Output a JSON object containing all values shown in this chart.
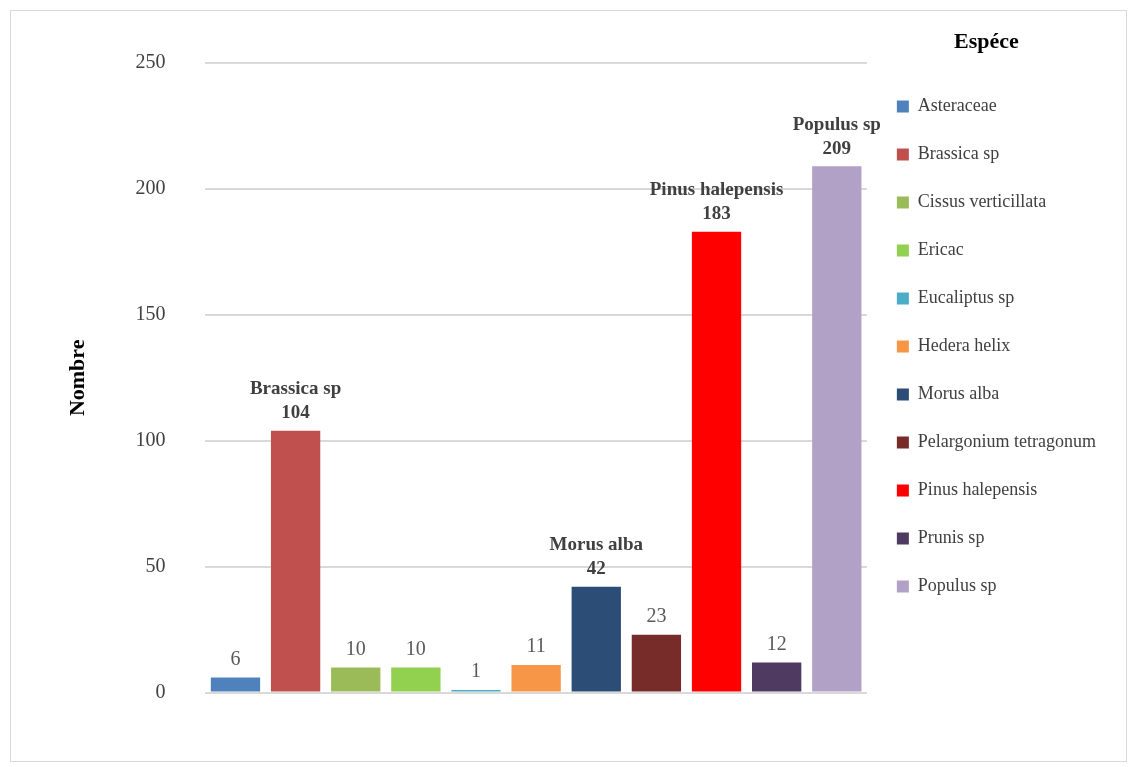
{
  "chart_data": {
    "type": "bar",
    "ylabel": "Nombre",
    "legend_title": "Espéce",
    "legend": "right",
    "grid": "y",
    "ylim": [
      0,
      250
    ],
    "yticks": [
      0,
      50,
      100,
      150,
      200,
      250
    ],
    "categories": [
      null,
      null,
      null,
      null,
      null,
      null,
      null,
      null,
      null,
      null,
      null
    ],
    "series": [
      {
        "name": "Asteraceae",
        "color": "#4f81bd",
        "values": [
          6,
          null,
          null,
          null,
          null,
          null,
          null,
          null,
          null,
          null,
          null
        ],
        "value_labels": [
          "6",
          null,
          null,
          null,
          null,
          null,
          null,
          null,
          null,
          null,
          null
        ]
      },
      {
        "name": "Brassica sp",
        "color": "#c0504d",
        "values": [
          null,
          104,
          null,
          null,
          null,
          null,
          null,
          null,
          null,
          null,
          null
        ],
        "value_labels": [
          null,
          "Brassica sp\n104",
          null,
          null,
          null,
          null,
          null,
          null,
          null,
          null,
          null
        ]
      },
      {
        "name": "Cissus verticillata",
        "color": "#9bbb59",
        "values": [
          null,
          null,
          10,
          null,
          null,
          null,
          null,
          null,
          null,
          null,
          null
        ],
        "value_labels": [
          null,
          null,
          "10",
          null,
          null,
          null,
          null,
          null,
          null,
          null,
          null
        ]
      },
      {
        "name": "Ericac",
        "color": "#92d050",
        "values": [
          null,
          null,
          null,
          10,
          null,
          null,
          null,
          null,
          null,
          null,
          null
        ],
        "value_labels": [
          null,
          null,
          null,
          "10",
          null,
          null,
          null,
          null,
          null,
          null,
          null
        ]
      },
      {
        "name": "Eucaliptus sp",
        "color": "#4bacc6",
        "values": [
          null,
          null,
          null,
          null,
          1,
          null,
          null,
          null,
          null,
          null,
          null
        ],
        "value_labels": [
          null,
          null,
          null,
          null,
          "1",
          null,
          null,
          null,
          null,
          null,
          null
        ]
      },
      {
        "name": "Hedera helix",
        "color": "#f79646",
        "values": [
          null,
          null,
          null,
          null,
          null,
          11,
          null,
          null,
          null,
          null,
          null
        ],
        "value_labels": [
          null,
          null,
          null,
          null,
          null,
          "11",
          null,
          null,
          null,
          null,
          null
        ]
      },
      {
        "name": "Morus alba",
        "color": "#2c4d75",
        "values": [
          null,
          null,
          null,
          null,
          null,
          null,
          42,
          null,
          null,
          null,
          null
        ],
        "value_labels": [
          null,
          null,
          null,
          null,
          null,
          null,
          "Morus alba\n42",
          null,
          null,
          null,
          null
        ]
      },
      {
        "name": "Pelargonium tetragonum",
        "color": "#772c2a",
        "values": [
          null,
          null,
          null,
          null,
          null,
          null,
          null,
          23,
          null,
          null,
          null
        ],
        "value_labels": [
          null,
          null,
          null,
          null,
          null,
          null,
          null,
          "23",
          null,
          null,
          null
        ]
      },
      {
        "name": "Pinus halepensis",
        "color": "#ff0000",
        "values": [
          null,
          null,
          null,
          null,
          null,
          null,
          null,
          null,
          183,
          null,
          null
        ],
        "value_labels": [
          null,
          null,
          null,
          null,
          null,
          null,
          null,
          null,
          "Pinus halepensis\n183",
          null,
          null
        ]
      },
      {
        "name": "Prunis sp",
        "color": "#4f3b62",
        "values": [
          null,
          null,
          null,
          null,
          null,
          null,
          null,
          null,
          null,
          12,
          null
        ],
        "value_labels": [
          null,
          null,
          null,
          null,
          null,
          null,
          null,
          null,
          null,
          "12",
          null
        ]
      },
      {
        "name": "Populus sp",
        "color": "#b2a1c7",
        "values": [
          null,
          null,
          null,
          null,
          null,
          null,
          null,
          null,
          null,
          null,
          209
        ],
        "value_labels": [
          null,
          null,
          null,
          null,
          null,
          null,
          null,
          null,
          null,
          null,
          "Populus sp\n209"
        ]
      }
    ]
  }
}
